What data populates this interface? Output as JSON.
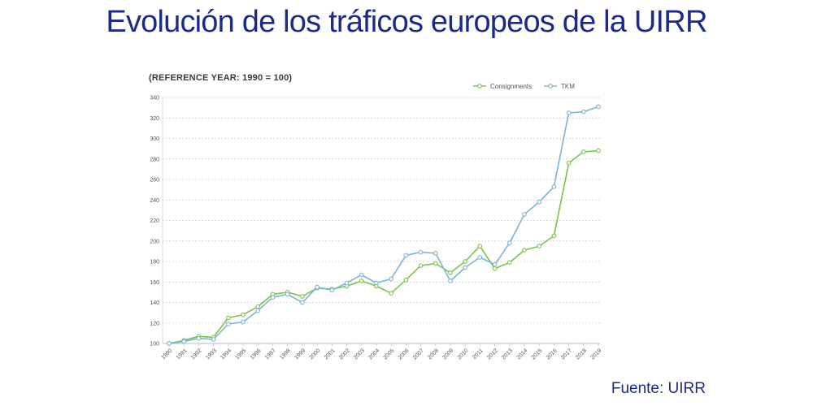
{
  "title": "Evolución de los tráficos europeos de la UIRR",
  "source": "Fuente:  UIRR",
  "chart_data": {
    "type": "line",
    "subtitle": "(REFERENCE YEAR: 1990 = 100)",
    "xlabel": "",
    "ylabel": "",
    "ylim": [
      100,
      340
    ],
    "yticks": [
      100,
      120,
      140,
      160,
      180,
      200,
      220,
      240,
      260,
      280,
      300,
      320,
      340
    ],
    "grid": true,
    "legend_position": "top-right",
    "x": [
      "1990",
      "1991",
      "1992",
      "1993",
      "1994",
      "1995",
      "1996",
      "1997",
      "1998",
      "1999",
      "2000",
      "2001",
      "2002",
      "2003",
      "2004",
      "2005",
      "2006",
      "2007",
      "2008",
      "2009",
      "2010",
      "2011",
      "2012",
      "2013",
      "2014",
      "2015",
      "2016",
      "2017",
      "2018",
      "2019"
    ],
    "series": [
      {
        "name": "Consignments",
        "color": "#7dc24b",
        "values": [
          100,
          103,
          107,
          106,
          125,
          128,
          136,
          148,
          150,
          146,
          154,
          153,
          156,
          161,
          156,
          149,
          162,
          176,
          178,
          169,
          180,
          195,
          173,
          179,
          191,
          195,
          205,
          276,
          287,
          288
        ]
      },
      {
        "name": "TKM",
        "color": "#7fb3d6",
        "values": [
          100,
          102,
          105,
          104,
          119,
          121,
          132,
          145,
          148,
          140,
          155,
          152,
          159,
          167,
          159,
          163,
          186,
          189,
          188,
          161,
          174,
          184,
          177,
          198,
          226,
          238,
          253,
          325,
          326,
          331
        ]
      }
    ]
  }
}
